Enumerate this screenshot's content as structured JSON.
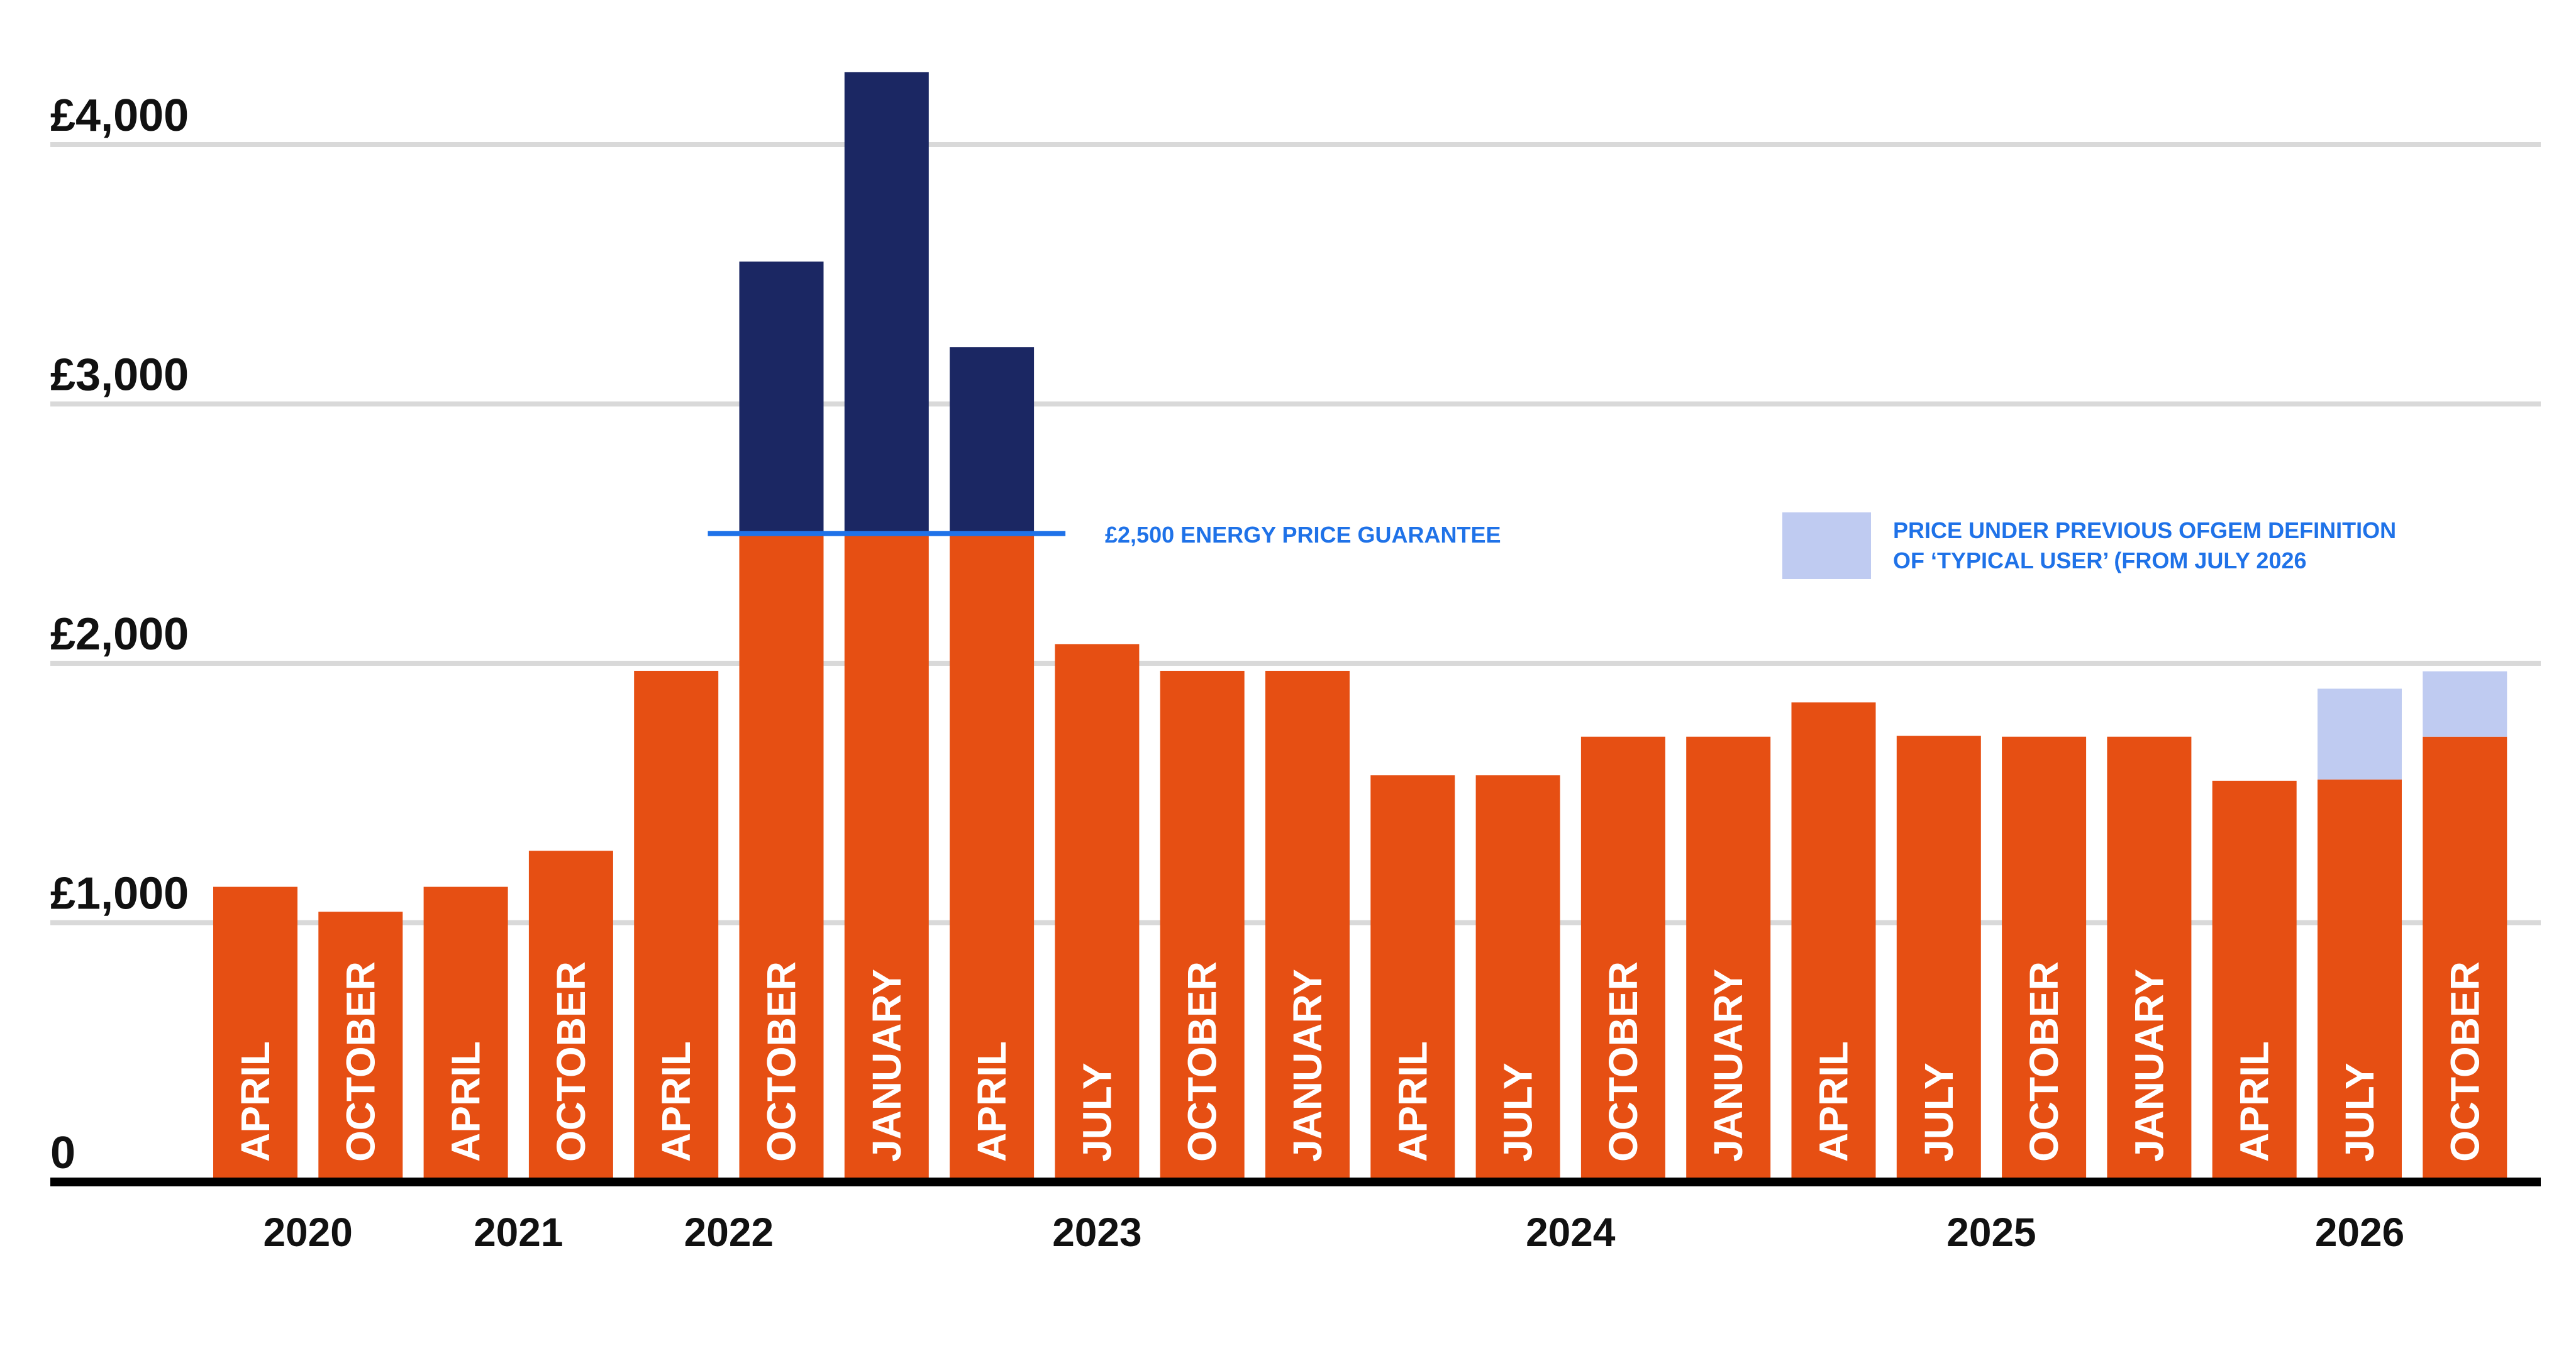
{
  "colors": {
    "base_bar": "#E64F13",
    "above_guarantee": "#1B2763",
    "previous_definition": "#BFCBF1",
    "guarantee_line": "#1F72E8",
    "grid": "#D9D9D9",
    "axis": "#000000",
    "text": "#111111",
    "bar_label": "#FFFFFF"
  },
  "chart_data": {
    "type": "bar",
    "stacked": true,
    "ylim": [
      0,
      4300
    ],
    "yticks": [
      {
        "value": 0,
        "label": "0"
      },
      {
        "value": 1000,
        "label": "£1,000"
      },
      {
        "value": 2000,
        "label": "£2,000"
      },
      {
        "value": 3000,
        "label": "£3,000"
      },
      {
        "value": 4000,
        "label": "£4,000"
      }
    ],
    "grid": true,
    "categories": [
      "APRIL",
      "OCTOBER",
      "APRIL",
      "OCTOBER",
      "APRIL",
      "OCTOBER",
      "JANUARY",
      "APRIL",
      "JULY",
      "OCTOBER",
      "JANUARY",
      "APRIL",
      "JULY",
      "OCTOBER",
      "JANUARY",
      "APRIL",
      "JULY",
      "OCTOBER",
      "JANUARY",
      "APRIL",
      "JULY",
      "OCTOBER"
    ],
    "year_labels": [
      {
        "label": "2020",
        "from": 0,
        "to": 1
      },
      {
        "label": "2021",
        "from": 2,
        "to": 3
      },
      {
        "label": "2022",
        "from": 4,
        "to": 5
      },
      {
        "label": "2023",
        "from": 6,
        "to": 10
      },
      {
        "label": "2024",
        "from": 11,
        "to": 14
      },
      {
        "label": "2025",
        "from": 15,
        "to": 18
      },
      {
        "label": "2026",
        "from": 19,
        "to": 21
      }
    ],
    "series": [
      {
        "values": [
          1138,
          1042,
          1138,
          1277,
          1971,
          2500,
          2500,
          2500,
          2074,
          1971,
          1971,
          1568,
          1568,
          1717,
          1717,
          1849,
          1720,
          1717,
          1717,
          1547,
          1552,
          1717
        ]
      },
      {
        "values": [
          0,
          0,
          0,
          0,
          0,
          1049,
          1779,
          719,
          0,
          0,
          0,
          0,
          0,
          0,
          0,
          0,
          0,
          0,
          0,
          0,
          0,
          0
        ]
      },
      {
        "name": "PRICE UNDER PREVIOUS OFGEM DEFINITION OF ‘TYPICAL USER’ (FROM JULY 2026",
        "values": [
          0,
          0,
          0,
          0,
          0,
          0,
          0,
          0,
          0,
          0,
          0,
          0,
          0,
          0,
          0,
          0,
          0,
          0,
          0,
          0,
          350,
          252
        ]
      }
    ],
    "annotations": [
      {
        "label": "£2,500 ENERGY PRICE GUARANTEE",
        "value": 2500,
        "from": 5,
        "to": 7
      }
    ],
    "legend": {
      "position": "top-right",
      "line1": "PRICE UNDER PREVIOUS OFGEM DEFINITION",
      "line2": "OF ‘TYPICAL USER’ (FROM JULY 2026"
    }
  }
}
